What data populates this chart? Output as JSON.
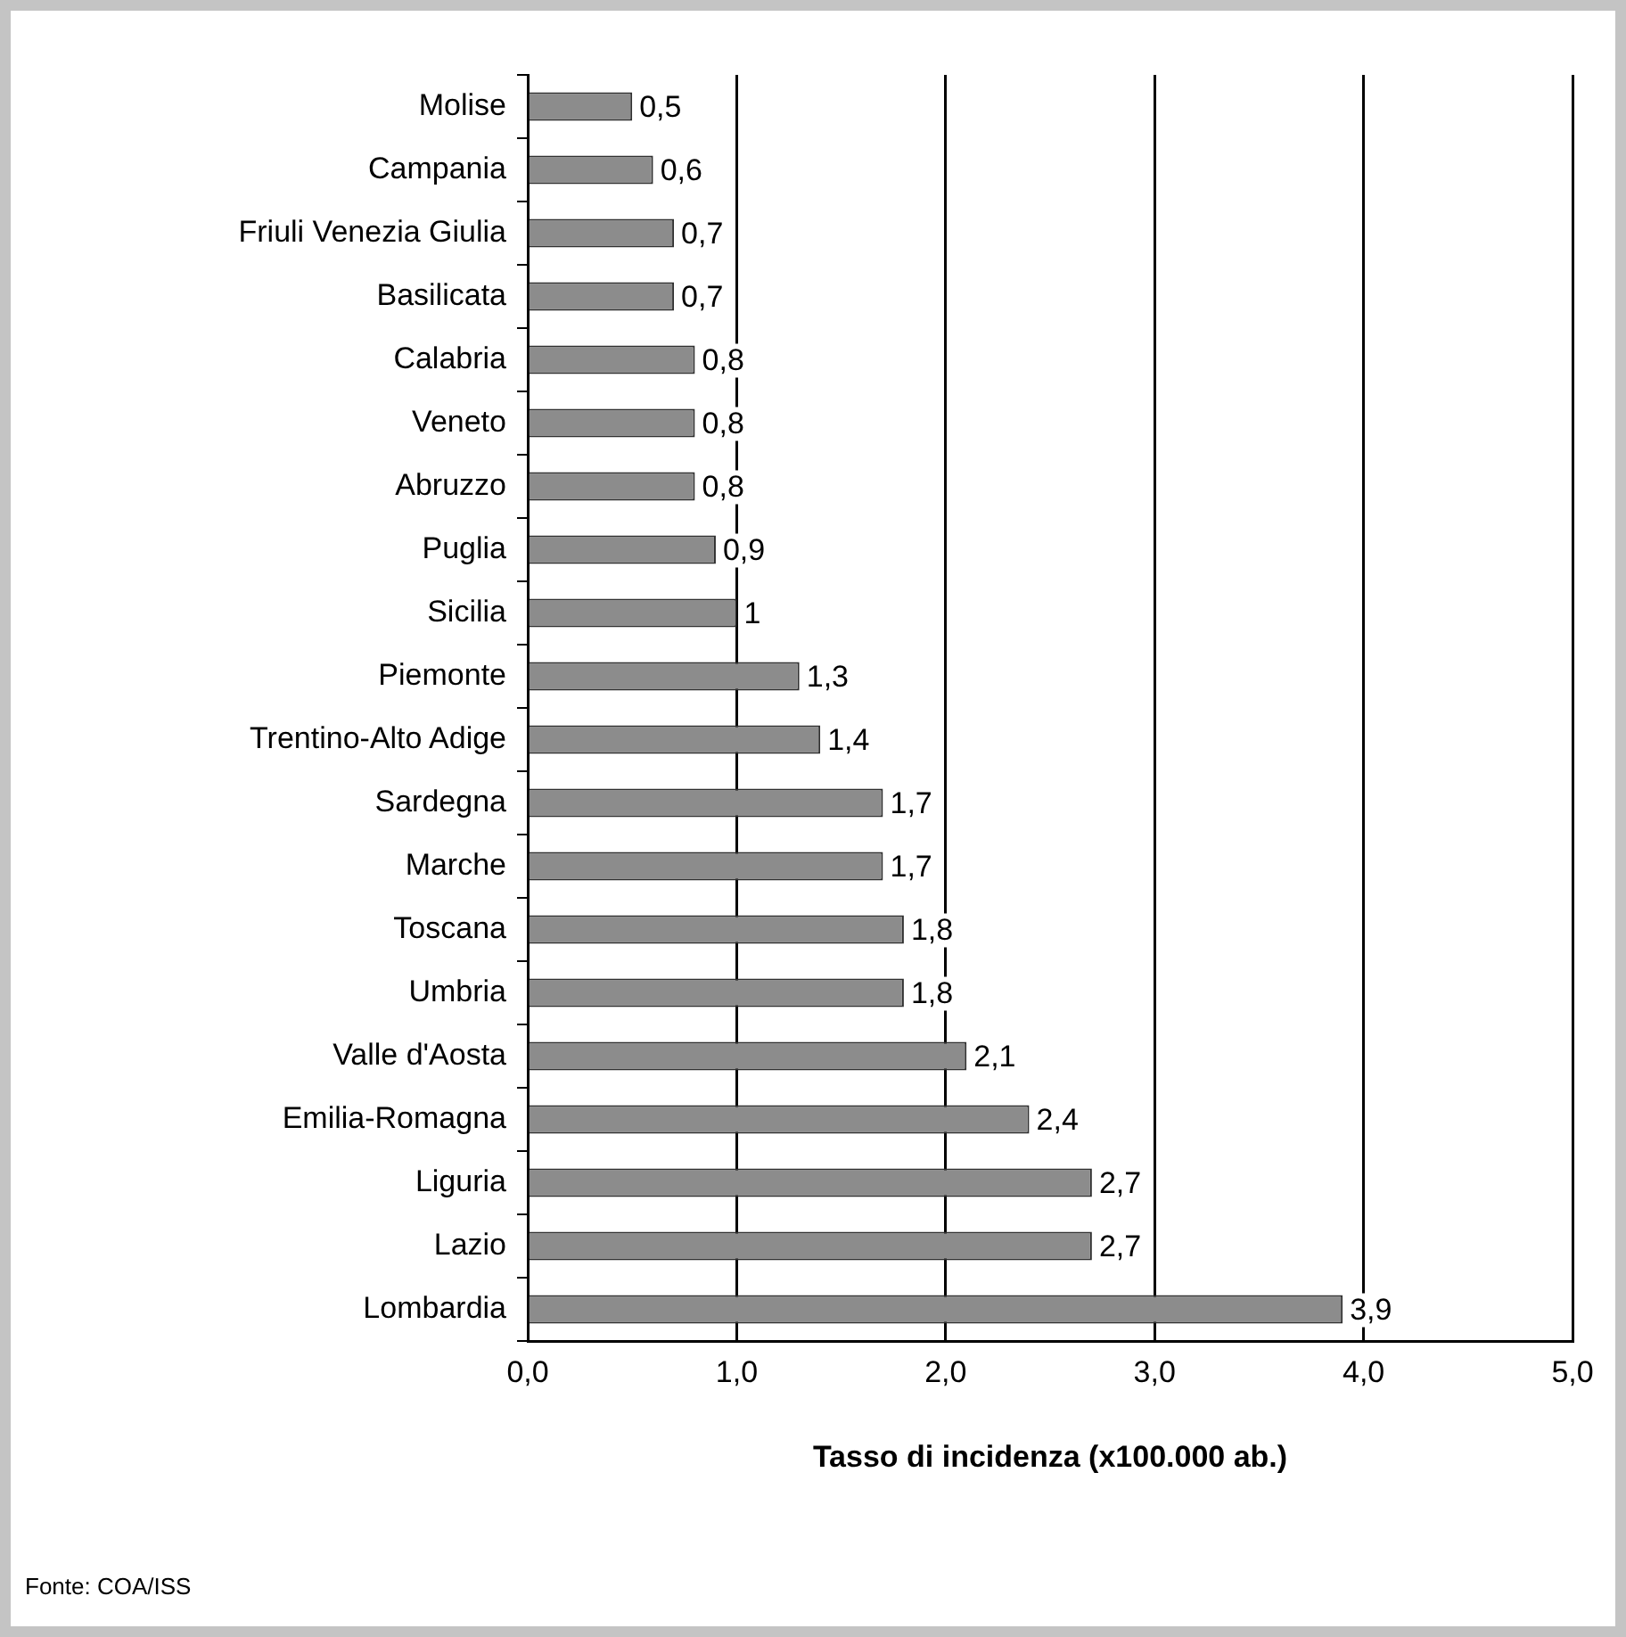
{
  "chart_data": {
    "type": "bar",
    "orientation": "horizontal",
    "xlabel": "Tasso di incidenza (x100.000 ab.)",
    "categories": [
      "Molise",
      "Campania",
      "Friuli Venezia Giulia",
      "Basilicata",
      "Calabria",
      "Veneto",
      "Abruzzo",
      "Puglia",
      "Sicilia",
      "Piemonte",
      "Trentino-Alto Adige",
      "Sardegna",
      "Marche",
      "Toscana",
      "Umbria",
      "Valle d'Aosta",
      "Emilia-Romagna",
      "Liguria",
      "Lazio",
      "Lombardia"
    ],
    "values": [
      0.5,
      0.6,
      0.7,
      0.7,
      0.8,
      0.8,
      0.8,
      0.9,
      1,
      1.3,
      1.4,
      1.7,
      1.7,
      1.8,
      1.8,
      2.1,
      2.4,
      2.7,
      2.7,
      3.9
    ],
    "value_labels": [
      "0,5",
      "0,6",
      "0,7",
      "0,7",
      "0,8",
      "0,8",
      "0,8",
      "0,9",
      "1",
      "1,3",
      "1,4",
      "1,7",
      "1,7",
      "1,8",
      "1,8",
      "2,1",
      "2,4",
      "2,7",
      "2,7",
      "3,9"
    ],
    "color": "#8c8c8c",
    "xlim": [
      0,
      5
    ],
    "xticks": [
      {
        "value": 0,
        "label": "0,0"
      },
      {
        "value": 1,
        "label": "1,0"
      },
      {
        "value": 2,
        "label": "2,0"
      },
      {
        "value": 3,
        "label": "3,0"
      },
      {
        "value": 4,
        "label": "4,0"
      },
      {
        "value": 5,
        "label": "5,0"
      }
    ],
    "grid": "x",
    "annotations": [
      "Fonte: COA/ISS"
    ]
  }
}
